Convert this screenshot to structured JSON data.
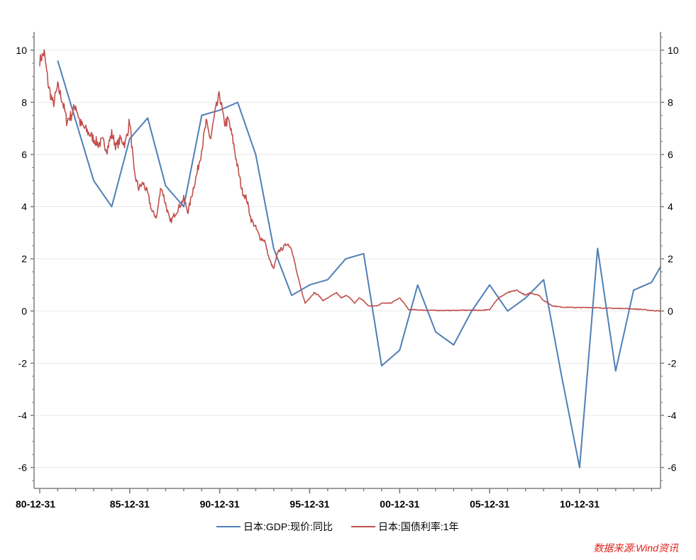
{
  "chart_data": {
    "type": "line",
    "title": "",
    "xlabel": "",
    "ylabel": "",
    "grid": true,
    "x_range": [
      "1980-12-31",
      "2015-06-30"
    ],
    "ylim_left": [
      -6.8,
      10.7
    ],
    "ylim_right": [
      -6.8,
      10.7
    ],
    "y_ticks": [
      -6,
      -4,
      -2,
      0,
      2,
      4,
      6,
      8,
      10
    ],
    "y_tick_labels": [
      "-6",
      "-4",
      "-2",
      "0",
      "2",
      "4",
      "6",
      "8",
      "10"
    ],
    "x_ticks": [
      "1980-12-31",
      "1985-12-31",
      "1990-12-31",
      "1995-12-31",
      "2000-12-31",
      "2005-12-31",
      "2010-12-31"
    ],
    "x_tick_labels": [
      "80-12-31",
      "85-12-31",
      "90-12-31",
      "95-12-31",
      "00-12-31",
      "05-12-31",
      "10-12-31"
    ],
    "legend_position": "bottom",
    "source_text": "数据来源:Wind资讯",
    "colors": {
      "gdp": "#4f7fb6",
      "bond": "#c0504d",
      "axis": "#7f7f7f",
      "grid": "#e9e9e9",
      "source": "#e0201b"
    },
    "series": [
      {
        "name": "日本:GDP:现价:同比",
        "key": "gdp",
        "style": "line",
        "points": [
          [
            "1981-12-31",
            9.6
          ],
          [
            "1982-12-31",
            7.3
          ],
          [
            "1983-12-31",
            5.0
          ],
          [
            "1984-12-31",
            4.0
          ],
          [
            "1985-12-31",
            6.6
          ],
          [
            "1986-12-31",
            7.4
          ],
          [
            "1987-12-31",
            4.8
          ],
          [
            "1988-12-31",
            4.0
          ],
          [
            "1989-12-31",
            7.5
          ],
          [
            "1990-12-31",
            7.7
          ],
          [
            "1991-12-31",
            8.0
          ],
          [
            "1992-12-31",
            6.0
          ],
          [
            "1993-12-31",
            2.4
          ],
          [
            "1994-12-31",
            0.6
          ],
          [
            "1995-12-31",
            1.0
          ],
          [
            "1996-12-31",
            1.2
          ],
          [
            "1997-12-31",
            2.0
          ],
          [
            "1998-12-31",
            2.2
          ],
          [
            "1999-12-31",
            -2.1
          ],
          [
            "2000-12-31",
            -1.5
          ],
          [
            "2001-12-31",
            1.0
          ],
          [
            "2002-12-31",
            -0.8
          ],
          [
            "2003-12-31",
            -1.3
          ],
          [
            "2004-12-31",
            0.0
          ],
          [
            "2005-12-31",
            1.0
          ],
          [
            "2006-12-31",
            0.0
          ],
          [
            "2007-12-31",
            0.5
          ],
          [
            "2008-12-31",
            1.2
          ],
          [
            "2009-12-31",
            -2.5
          ],
          [
            "2010-12-31",
            -6.0
          ],
          [
            "2011-12-31",
            2.4
          ],
          [
            "2012-12-31",
            -2.3
          ],
          [
            "2013-12-31",
            0.8
          ],
          [
            "2014-12-31",
            1.1
          ],
          [
            "2015-06-30",
            1.7
          ]
        ]
      },
      {
        "name": "日本:国债利率:1年",
        "key": "bond",
        "style": "noisy",
        "points": [
          [
            "1980-12-31",
            9.6
          ],
          [
            "1981-03-31",
            9.9
          ],
          [
            "1981-06-30",
            8.6
          ],
          [
            "1981-09-30",
            7.9
          ],
          [
            "1981-12-31",
            8.6
          ],
          [
            "1982-03-31",
            8.1
          ],
          [
            "1982-06-30",
            7.3
          ],
          [
            "1982-09-30",
            7.5
          ],
          [
            "1982-12-31",
            7.9
          ],
          [
            "1983-03-31",
            7.2
          ],
          [
            "1983-06-30",
            7.0
          ],
          [
            "1983-09-30",
            6.8
          ],
          [
            "1983-12-31",
            6.6
          ],
          [
            "1984-03-31",
            6.4
          ],
          [
            "1984-06-30",
            6.5
          ],
          [
            "1984-09-30",
            6.2
          ],
          [
            "1984-12-31",
            6.8
          ],
          [
            "1985-03-31",
            6.3
          ],
          [
            "1985-06-30",
            6.6
          ],
          [
            "1985-09-30",
            6.4
          ],
          [
            "1985-12-31",
            7.3
          ],
          [
            "1986-03-31",
            5.3
          ],
          [
            "1986-06-30",
            4.7
          ],
          [
            "1986-09-30",
            4.9
          ],
          [
            "1986-12-31",
            4.5
          ],
          [
            "1987-03-31",
            3.8
          ],
          [
            "1987-06-30",
            3.6
          ],
          [
            "1987-09-30",
            4.8
          ],
          [
            "1987-12-31",
            4.1
          ],
          [
            "1988-03-31",
            3.4
          ],
          [
            "1988-06-30",
            3.7
          ],
          [
            "1988-09-30",
            4.0
          ],
          [
            "1988-12-31",
            4.3
          ],
          [
            "1989-03-31",
            3.8
          ],
          [
            "1989-06-30",
            4.6
          ],
          [
            "1989-09-30",
            5.3
          ],
          [
            "1989-12-31",
            6.2
          ],
          [
            "1990-03-31",
            7.2
          ],
          [
            "1990-06-30",
            6.6
          ],
          [
            "1990-09-30",
            7.6
          ],
          [
            "1990-12-31",
            8.3
          ],
          [
            "1991-03-31",
            7.2
          ],
          [
            "1991-06-30",
            7.3
          ],
          [
            "1991-09-30",
            6.5
          ],
          [
            "1991-12-31",
            5.5
          ],
          [
            "1992-03-31",
            4.6
          ],
          [
            "1992-06-30",
            4.3
          ],
          [
            "1992-09-30",
            3.5
          ],
          [
            "1992-12-31",
            3.2
          ],
          [
            "1993-03-31",
            2.8
          ],
          [
            "1993-06-30",
            2.7
          ],
          [
            "1993-09-30",
            2.0
          ],
          [
            "1993-12-31",
            1.6
          ],
          [
            "1994-03-31",
            2.3
          ],
          [
            "1994-06-30",
            2.4
          ],
          [
            "1994-09-30",
            2.6
          ],
          [
            "1994-12-31",
            2.4
          ],
          [
            "1995-03-31",
            1.6
          ],
          [
            "1995-06-30",
            0.9
          ],
          [
            "1995-09-30",
            0.3
          ],
          [
            "1995-12-31",
            0.5
          ],
          [
            "1996-03-31",
            0.7
          ],
          [
            "1996-06-30",
            0.6
          ],
          [
            "1996-09-30",
            0.4
          ],
          [
            "1996-12-31",
            0.5
          ],
          [
            "1997-03-31",
            0.6
          ],
          [
            "1997-06-30",
            0.7
          ],
          [
            "1997-09-30",
            0.5
          ],
          [
            "1997-12-31",
            0.6
          ],
          [
            "1998-03-31",
            0.5
          ],
          [
            "1998-06-30",
            0.3
          ],
          [
            "1998-09-30",
            0.5
          ],
          [
            "1998-12-31",
            0.4
          ],
          [
            "1999-03-31",
            0.2
          ],
          [
            "1999-06-30",
            0.2
          ],
          [
            "1999-09-30",
            0.2
          ],
          [
            "1999-12-31",
            0.3
          ],
          [
            "2000-03-31",
            0.3
          ],
          [
            "2000-06-30",
            0.3
          ],
          [
            "2000-09-30",
            0.4
          ],
          [
            "2000-12-31",
            0.5
          ],
          [
            "2001-03-31",
            0.3
          ],
          [
            "2001-06-30",
            0.05
          ],
          [
            "2001-09-30",
            0.05
          ],
          [
            "2002-06-30",
            0.03
          ],
          [
            "2003-06-30",
            0.02
          ],
          [
            "2004-06-30",
            0.03
          ],
          [
            "2005-06-30",
            0.03
          ],
          [
            "2005-12-31",
            0.05
          ],
          [
            "2006-03-31",
            0.3
          ],
          [
            "2006-06-30",
            0.5
          ],
          [
            "2006-09-30",
            0.6
          ],
          [
            "2006-12-31",
            0.7
          ],
          [
            "2007-03-31",
            0.75
          ],
          [
            "2007-06-30",
            0.8
          ],
          [
            "2007-09-30",
            0.7
          ],
          [
            "2007-12-31",
            0.6
          ],
          [
            "2008-03-31",
            0.7
          ],
          [
            "2008-06-30",
            0.65
          ],
          [
            "2008-09-30",
            0.6
          ],
          [
            "2008-12-31",
            0.4
          ],
          [
            "2009-03-31",
            0.3
          ],
          [
            "2009-06-30",
            0.2
          ],
          [
            "2009-12-31",
            0.15
          ],
          [
            "2010-06-30",
            0.14
          ],
          [
            "2010-12-31",
            0.13
          ],
          [
            "2011-06-30",
            0.14
          ],
          [
            "2011-12-31",
            0.12
          ],
          [
            "2012-06-30",
            0.11
          ],
          [
            "2012-12-31",
            0.1
          ],
          [
            "2013-06-30",
            0.1
          ],
          [
            "2013-12-31",
            0.08
          ],
          [
            "2014-06-30",
            0.06
          ],
          [
            "2014-12-31",
            0.02
          ],
          [
            "2015-06-30",
            0.0
          ]
        ]
      }
    ]
  }
}
